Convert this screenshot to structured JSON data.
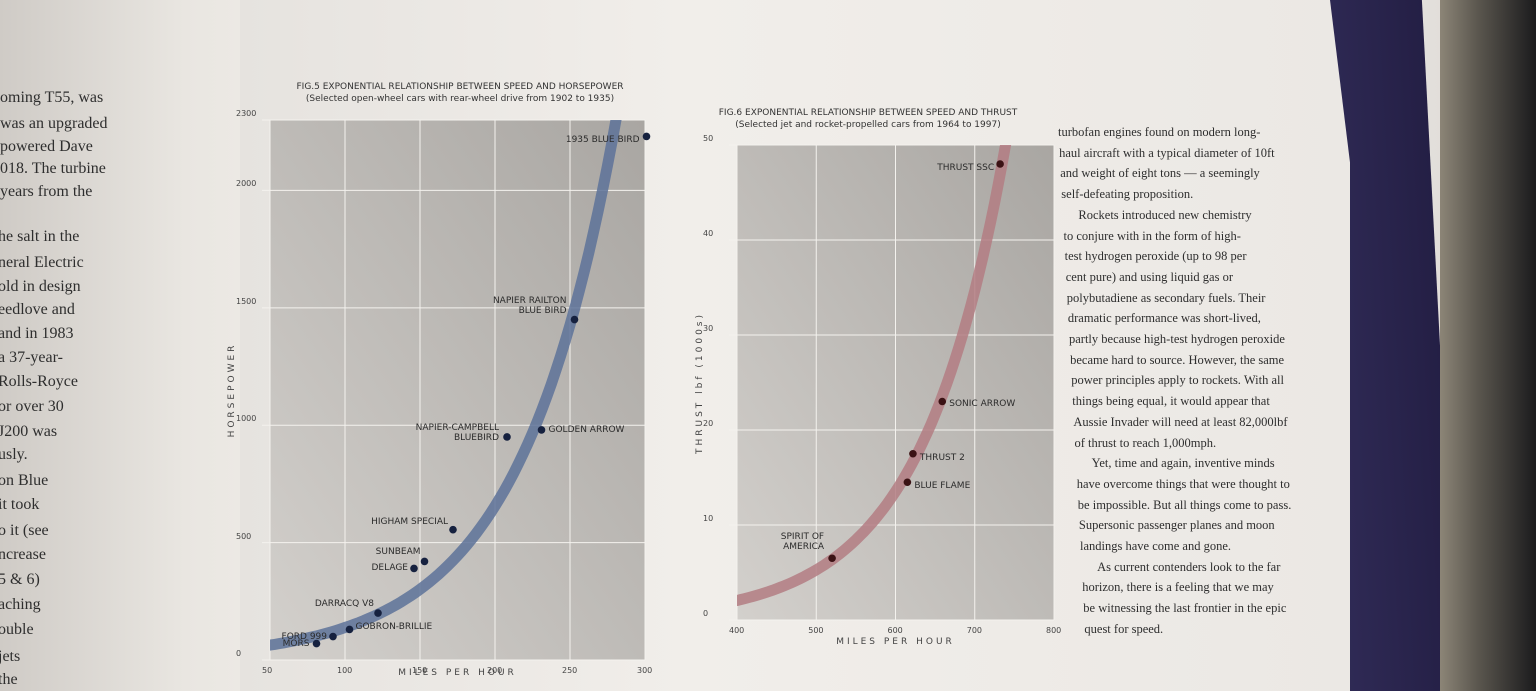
{
  "chart_data": [
    {
      "type": "scatter",
      "title": "FIG.5 EXPONENTIAL RELATIONSHIP BETWEEN SPEED AND HORSEPOWER",
      "subtitle": "(Selected open-wheel cars with rear-wheel drive from 1902 to 1935)",
      "x_label": "MILES PER HOUR",
      "y_label": "HORSEPOWER",
      "point_labels": [
        "MORS",
        "FORD 999",
        "GOBRON-BRILLIE",
        "DARRACQ V8",
        "DELAGE",
        "SUNBEAM",
        "HIGHAM SPECIAL",
        "NAPIER-CAMPBELL\nBLUEBIRD",
        "GOLDEN ARROW",
        "NAPIER RAILTON\nBLUE BIRD",
        "1935 BLUE BIRD"
      ],
      "x": [
        81,
        92,
        103,
        122,
        146,
        153,
        172,
        208,
        231,
        253,
        301
      ],
      "values": [
        70,
        100,
        130,
        200,
        390,
        420,
        555,
        950,
        980,
        1450,
        2230
      ],
      "xlim": [
        50,
        300
      ],
      "xticks": [
        50,
        100,
        150,
        200,
        250,
        300
      ],
      "ylim": [
        0,
        2300
      ],
      "yticks": [
        0,
        500,
        1000,
        1500,
        2000,
        2300
      ],
      "grid": true,
      "color": "#16213f",
      "trend_color": "#5d7299"
    },
    {
      "type": "scatter",
      "title": "FIG.6 EXPONENTIAL RELATIONSHIP BETWEEN SPEED AND THRUST",
      "subtitle": "(Selected jet and rocket-propelled cars from 1964 to 1997)",
      "x_label": "MILES PER HOUR",
      "y_label": "THRUST lbf (1000s)",
      "point_labels": [
        "SPIRIT OF\nAMERICA",
        "BLUE FLAME",
        "THRUST 2",
        "SONIC ARROW",
        "THRUST SSC"
      ],
      "x": [
        520,
        615,
        622,
        659,
        732
      ],
      "values": [
        6.5,
        14.5,
        17.5,
        23,
        48
      ],
      "xlim": [
        400,
        800
      ],
      "xticks": [
        400,
        500,
        600,
        700,
        800
      ],
      "ylim": [
        0,
        50
      ],
      "yticks": [
        0,
        10,
        20,
        30,
        40,
        50
      ],
      "grid": true,
      "color": "#3b1214",
      "trend_color": "#b37c82"
    }
  ],
  "left_column": [
    "oming T55, was",
    "was an upgraded",
    "powered Dave",
    "018. The turbine",
    "years from the",
    "he salt in the",
    "neral Electric",
    "old in design",
    "eedlove and",
    "and in 1983",
    "a 37-year-",
    "Rolls-Royce",
    "or over 30",
    "J200 was",
    "usly.",
    "on Blue",
    "it took",
    "o it (see",
    "ncrease",
    "5 & 6)",
    "aching",
    "ouble",
    "jets",
    "the"
  ],
  "right_column": [
    "turbofan engines found on modern long-",
    "haul aircraft with a typical diameter of 10ft",
    "and weight of eight tons — a seemingly",
    "self-defeating proposition.",
    "Rockets introduced new chemistry",
    "to conjure with in the form of high-",
    "test hydrogen peroxide (up to 98 per",
    "cent pure) and using liquid gas or",
    "polybutadiene as secondary fuels. Their",
    "dramatic performance was short-lived,",
    "partly because high-test hydrogen peroxide",
    "became hard to source. However, the same",
    "power principles apply to rockets. With all",
    "things being equal, it would appear that",
    "Aussie Invader will need at least 82,000lbf",
    "of thrust to reach 1,000mph.",
    "Yet, time and again, inventive minds",
    "have overcome things that were thought to",
    "be impossible. But all things come to pass.",
    "Supersonic passenger planes and moon",
    "landings have come and gone.",
    "As current contenders look to the far",
    "horizon, there is a feeling that we may",
    "be witnessing the last frontier in the epic",
    "quest for speed."
  ]
}
